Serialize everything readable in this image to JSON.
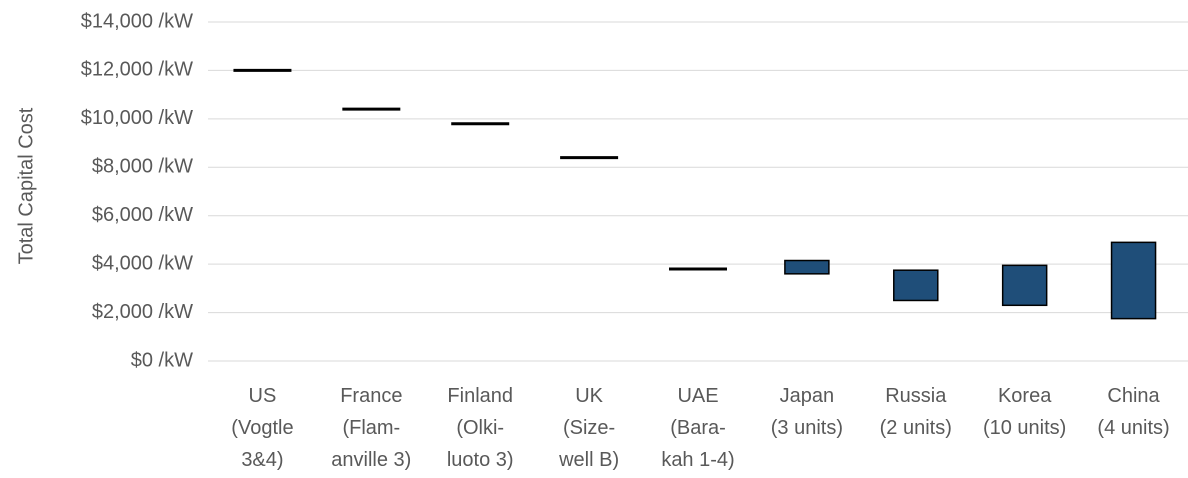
{
  "chart_data": {
    "type": "bar",
    "subtype": "floating-range",
    "title": "",
    "xlabel": "",
    "ylabel": "Total Capital Cost",
    "ylim": [
      0,
      14000
    ],
    "y_ticks": [
      0,
      2000,
      4000,
      6000,
      8000,
      10000,
      12000,
      14000
    ],
    "y_tick_labels": [
      "$0 /kW",
      "$2,000 /kW",
      "$4,000 /kW",
      "$6,000 /kW",
      "$8,000 /kW",
      "$10,000 /kW",
      "$12,000 /kW",
      "$14,000 /kW"
    ],
    "categories": [
      [
        "US",
        "(Vogtle",
        "3&4)"
      ],
      [
        "France",
        "(Flam-",
        "anville 3)"
      ],
      [
        "Finland",
        "(Olki-",
        "luoto 3)"
      ],
      [
        "UK",
        "(Size-",
        "well B)"
      ],
      [
        "UAE",
        "(Bara-",
        "kah 1-4)"
      ],
      [
        "Japan",
        "(3 units)"
      ],
      [
        "Russia",
        "(2 units)"
      ],
      [
        "Korea",
        "(10 units)"
      ],
      [
        "China",
        "(4 units)"
      ]
    ],
    "series": [
      {
        "values": [
          [
            12000,
            12000
          ],
          [
            10400,
            10400
          ],
          [
            9800,
            9800
          ],
          [
            8400,
            8400
          ],
          [
            3800,
            3800
          ],
          [
            3600,
            4150
          ],
          [
            2500,
            3750
          ],
          [
            2300,
            3950
          ],
          [
            1750,
            4900
          ]
        ]
      }
    ],
    "grid": true,
    "legend": "none",
    "colors": {
      "bar_fill": "#1f4e79",
      "bar_stroke": "#000000",
      "marker": "#000000",
      "gridline": "#d9d9d9",
      "text": "#595959"
    }
  }
}
